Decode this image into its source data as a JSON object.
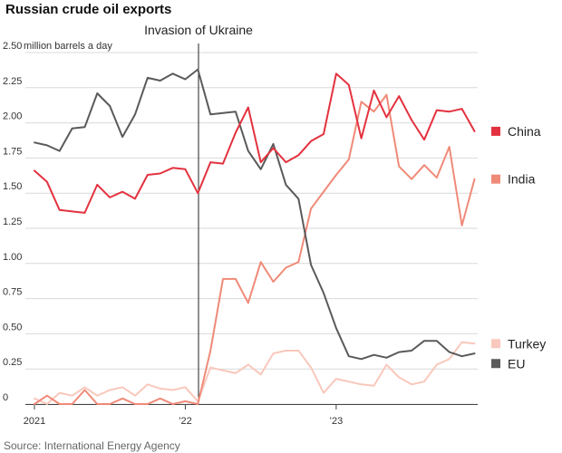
{
  "chart_data": {
    "type": "line",
    "title": "Russian crude oil exports",
    "ylabel": "million barrels a day",
    "ylim": [
      0,
      2.5
    ],
    "y_ticks": [
      "0",
      "0.25",
      "0.50",
      "0.75",
      "1.00",
      "1.25",
      "1.50",
      "1.75",
      "2.00",
      "2.25",
      "2.50"
    ],
    "x_ticks": [
      "2021",
      "’22",
      "’23"
    ],
    "annotation": "Invasion of Ukraine",
    "source": "Source: International Energy Agency",
    "grid": true,
    "legend_placement": "right",
    "series": [
      {
        "name": "China",
        "color": "#e3323f",
        "values": [
          1.66,
          1.58,
          1.38,
          1.37,
          1.36,
          1.56,
          1.47,
          1.51,
          1.46,
          1.63,
          1.64,
          1.68,
          1.67,
          1.5,
          1.72,
          1.71,
          1.93,
          2.11,
          1.72,
          1.82,
          1.72,
          1.77,
          1.87,
          1.92,
          2.35,
          2.27,
          1.89,
          2.23,
          2.04,
          2.19,
          2.02,
          1.88,
          2.09,
          2.08,
          2.1,
          1.94
        ]
      },
      {
        "name": "India",
        "color": "#f08a78",
        "values": [
          0.0,
          0.06,
          0.0,
          0.0,
          0.1,
          0.0,
          0.0,
          0.04,
          0.0,
          0.0,
          0.04,
          0.0,
          0.02,
          0.0,
          0.38,
          0.89,
          0.89,
          0.72,
          1.01,
          0.87,
          0.97,
          1.01,
          1.39,
          1.51,
          1.63,
          1.74,
          2.15,
          2.08,
          2.2,
          1.69,
          1.6,
          1.7,
          1.61,
          1.83,
          1.27,
          1.6
        ]
      },
      {
        "name": "Turkey",
        "color": "#f9c8bc",
        "values": [
          0.04,
          0.0,
          0.08,
          0.06,
          0.12,
          0.06,
          0.1,
          0.12,
          0.06,
          0.14,
          0.11,
          0.1,
          0.12,
          0.02,
          0.26,
          0.24,
          0.22,
          0.28,
          0.21,
          0.36,
          0.38,
          0.38,
          0.26,
          0.08,
          0.18,
          0.16,
          0.14,
          0.13,
          0.28,
          0.19,
          0.14,
          0.16,
          0.28,
          0.32,
          0.44,
          0.43
        ]
      },
      {
        "name": "EU",
        "color": "#5a5a5a",
        "values": [
          1.86,
          1.84,
          1.8,
          1.96,
          1.97,
          2.21,
          2.12,
          1.9,
          2.06,
          2.32,
          2.3,
          2.35,
          2.31,
          2.38,
          2.06,
          2.07,
          2.08,
          1.8,
          1.67,
          1.85,
          1.56,
          1.46,
          0.99,
          0.79,
          0.54,
          0.34,
          0.32,
          0.35,
          0.33,
          0.37,
          0.38,
          0.45,
          0.45,
          0.37,
          0.34,
          0.36
        ]
      }
    ]
  }
}
